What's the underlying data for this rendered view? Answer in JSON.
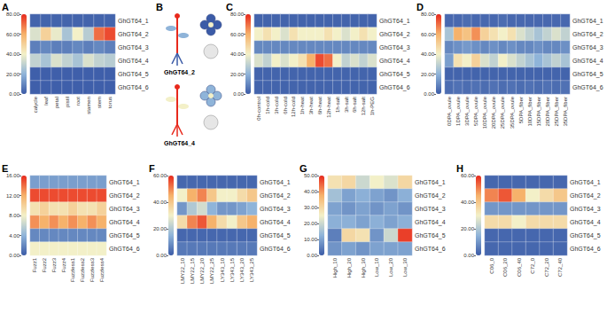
{
  "chart_data": [
    {
      "type": "heatmap",
      "title": "A",
      "x": [
        "calycle",
        "leaf",
        "petal",
        "pistil",
        "root",
        "stamen",
        "stem",
        "torus"
      ],
      "y": [
        "GhGT64_1",
        "GhGT64_2",
        "GhGT64_3",
        "GhGT64_4",
        "GhGT64_5",
        "GhGT64_6"
      ],
      "values": [
        [
          2,
          2,
          2,
          2,
          2,
          2,
          2,
          2
        ],
        [
          35,
          50,
          38,
          25,
          40,
          28,
          70,
          75
        ],
        [
          8,
          10,
          8,
          8,
          10,
          8,
          10,
          8
        ],
        [
          30,
          25,
          35,
          30,
          25,
          35,
          30,
          28
        ],
        [
          1,
          1,
          1,
          1,
          1,
          1,
          1,
          1
        ],
        [
          1,
          1,
          1,
          1,
          1,
          1,
          1,
          1
        ]
      ],
      "colorbar": {
        "range": [
          0,
          80
        ],
        "ticks": [
          {
            "value": 0,
            "label": "0.00"
          },
          {
            "value": 20,
            "label": "20.00"
          },
          {
            "value": 40,
            "label": "40.00"
          },
          {
            "value": 60,
            "label": "60.00"
          },
          {
            "value": 80,
            "label": "80.00"
          }
        ]
      }
    },
    {
      "type": "heatmap",
      "title": "C",
      "x": [
        "0h-control",
        "1h-cold",
        "3h-cold",
        "6h-cold",
        "12h-cold",
        "1h-heat",
        "3h-heat",
        "6h-heat",
        "12h-heat",
        "1h-salt",
        "3h-salt",
        "6h-salt",
        "12h-salt",
        "1h-PEG"
      ],
      "y": [
        "GhGT64_1",
        "GhGT64_2",
        "GhGT64_3",
        "GhGT64_4",
        "GhGT64_5",
        "GhGT64_6"
      ],
      "values": [
        [
          2,
          2,
          2,
          2,
          2,
          2,
          2,
          2,
          2,
          2,
          2,
          2,
          2,
          2
        ],
        [
          40,
          45,
          40,
          35,
          45,
          40,
          40,
          40,
          45,
          40,
          35,
          40,
          45,
          40
        ],
        [
          10,
          10,
          10,
          10,
          10,
          10,
          10,
          10,
          10,
          10,
          10,
          10,
          10,
          10
        ],
        [
          35,
          30,
          40,
          35,
          40,
          45,
          60,
          75,
          70,
          40,
          30,
          35,
          30,
          35
        ],
        [
          2,
          2,
          2,
          2,
          2,
          2,
          2,
          2,
          2,
          2,
          2,
          2,
          2,
          2
        ],
        [
          2,
          2,
          2,
          2,
          2,
          2,
          2,
          2,
          2,
          2,
          2,
          2,
          2,
          2
        ]
      ],
      "colorbar": {
        "range": [
          0,
          80
        ],
        "ticks": [
          {
            "value": 0,
            "label": "0.00"
          },
          {
            "value": 20,
            "label": "20.00"
          },
          {
            "value": 40,
            "label": "40.00"
          },
          {
            "value": 60,
            "label": "60.00"
          },
          {
            "value": 80,
            "label": "80.00"
          }
        ]
      }
    },
    {
      "type": "heatmap",
      "title": "D",
      "x": [
        "0DPA_ovule",
        "1DPA_ovule",
        "3DPA_ovule",
        "5DPA_ovule",
        "10DPA_ovule",
        "20DPA_ovule",
        "25DPA_ovule",
        "35DPA_ovule",
        "5DPA_fiber",
        "10DPA_fiber",
        "15DPA_fiber",
        "20DPA_fiber",
        "25DPA_fiber",
        "35DPA_fiber"
      ],
      "y": [
        "GhGT64_1",
        "GhGT64_2",
        "GhGT64_3",
        "GhGT64_4",
        "GhGT64_5",
        "GhGT64_6"
      ],
      "values": [
        [
          3,
          3,
          4,
          3,
          3,
          3,
          4,
          3,
          3,
          3,
          3,
          3,
          3,
          3
        ],
        [
          25,
          60,
          55,
          65,
          50,
          45,
          40,
          45,
          35,
          30,
          25,
          30,
          35,
          30
        ],
        [
          10,
          12,
          14,
          12,
          10,
          12,
          10,
          12,
          10,
          10,
          12,
          10,
          10,
          12
        ],
        [
          15,
          45,
          40,
          50,
          35,
          30,
          40,
          35,
          30,
          25,
          20,
          25,
          30,
          25
        ],
        [
          2,
          2,
          2,
          2,
          2,
          2,
          2,
          2,
          2,
          2,
          2,
          2,
          2,
          2
        ],
        [
          4,
          5,
          4,
          5,
          4,
          5,
          4,
          5,
          4,
          5,
          4,
          5,
          4,
          5
        ]
      ],
      "colorbar": {
        "range": [
          0,
          80
        ],
        "ticks": [
          {
            "value": 0,
            "label": "0.00"
          },
          {
            "value": 20,
            "label": "20.00"
          },
          {
            "value": 40,
            "label": "40.00"
          },
          {
            "value": 60,
            "label": "60.00"
          },
          {
            "value": 80,
            "label": "80.00"
          }
        ]
      }
    },
    {
      "type": "heatmap",
      "title": "E",
      "x": [
        "Fuzz1",
        "Fuzz2",
        "Fuzz3",
        "Fuzz4",
        "Fuzzless1",
        "Fuzzless2",
        "Fuzzless3",
        "Fuzzless4"
      ],
      "y": [
        "GhGT64_1",
        "GhGT64_2",
        "GhGT64_3",
        "GhGT64_4",
        "GhGT64_5",
        "GhGT64_6"
      ],
      "values": [
        [
          3,
          3,
          3,
          3,
          3,
          3,
          3,
          3
        ],
        [
          15,
          15,
          15,
          15,
          15,
          15,
          15,
          15
        ],
        [
          9,
          10,
          9,
          9,
          10,
          9,
          9,
          10
        ],
        [
          13,
          12,
          13,
          12,
          13,
          12,
          13,
          12
        ],
        [
          2,
          2,
          2,
          2,
          2,
          2,
          2,
          2
        ],
        [
          8,
          8,
          8,
          8,
          8,
          8,
          8,
          8
        ]
      ],
      "colorbar": {
        "range": [
          0,
          16
        ],
        "ticks": [
          {
            "value": 0,
            "label": "0.00"
          },
          {
            "value": 4,
            "label": "4.00"
          },
          {
            "value": 8,
            "label": "8.00"
          },
          {
            "value": 12,
            "label": "12.00"
          },
          {
            "value": 16,
            "label": "16.00"
          }
        ]
      }
    },
    {
      "type": "heatmap",
      "title": "F",
      "x": [
        "LMY22_10",
        "LMY22_15",
        "LMY22_20",
        "LMY22_25",
        "LY343_10",
        "LY343_15",
        "LY343_20",
        "LY343_25"
      ],
      "y": [
        "GhGT64_1",
        "GhGT64_2",
        "GhGT64_3",
        "GhGT64_4",
        "GhGT64_5",
        "GhGT64_6"
      ],
      "values": [
        [
          2,
          2,
          2,
          2,
          2,
          2,
          2,
          2
        ],
        [
          30,
          45,
          50,
          40,
          30,
          30,
          35,
          40
        ],
        [
          10,
          20,
          25,
          15,
          10,
          10,
          12,
          15
        ],
        [
          35,
          50,
          55,
          45,
          35,
          30,
          40,
          45
        ],
        [
          2,
          2,
          2,
          2,
          2,
          2,
          2,
          2
        ],
        [
          5,
          5,
          5,
          5,
          5,
          5,
          5,
          5
        ]
      ],
      "colorbar": {
        "range": [
          0,
          60
        ],
        "ticks": [
          {
            "value": 0,
            "label": "0.00"
          },
          {
            "value": 20,
            "label": "20.00"
          },
          {
            "value": 40,
            "label": "40.00"
          },
          {
            "value": 60,
            "label": "60.00"
          }
        ]
      }
    },
    {
      "type": "heatmap",
      "title": "G",
      "x": [
        "High_10",
        "High_20",
        "High_30",
        "Low_10",
        "Low_20",
        "Low_30"
      ],
      "y": [
        "GhGT64_1",
        "GhGT64_2",
        "GhGT64_3",
        "GhGT64_4",
        "GhGT64_5",
        "GhGT64_6"
      ],
      "values": [
        [
          28,
          30,
          20,
          25,
          22,
          30
        ],
        [
          15,
          10,
          12,
          10,
          8,
          12
        ],
        [
          10,
          8,
          10,
          8,
          10,
          8
        ],
        [
          12,
          12,
          10,
          12,
          10,
          12
        ],
        [
          5,
          30,
          28,
          8,
          20,
          48
        ],
        [
          8,
          10,
          8,
          10,
          10,
          10
        ]
      ],
      "colorbar": {
        "range": [
          0,
          50
        ],
        "ticks": [
          {
            "value": 0,
            "label": "0.00"
          },
          {
            "value": 10,
            "label": "10.00"
          },
          {
            "value": 20,
            "label": "20.00"
          },
          {
            "value": 30,
            "label": "30.00"
          },
          {
            "value": 40,
            "label": "40.00"
          },
          {
            "value": 50,
            "label": "50.00"
          }
        ]
      }
    },
    {
      "type": "heatmap",
      "title": "H",
      "x": [
        "C06_0",
        "C06_20",
        "C06_40",
        "C72_0",
        "C72_20",
        "C72_40"
      ],
      "y": [
        "GhGT64_1",
        "GhGT64_2",
        "GhGT64_3",
        "GhGT64_4",
        "GhGT64_5",
        "GhGT64_6"
      ],
      "values": [
        [
          2,
          2,
          2,
          2,
          2,
          2
        ],
        [
          50,
          55,
          45,
          30,
          35,
          40
        ],
        [
          10,
          10,
          10,
          10,
          10,
          10
        ],
        [
          35,
          35,
          30,
          35,
          35,
          35
        ],
        [
          2,
          2,
          2,
          2,
          2,
          2
        ],
        [
          2,
          2,
          2,
          2,
          2,
          2
        ]
      ],
      "colorbar": {
        "range": [
          0,
          60
        ],
        "ticks": [
          {
            "value": 0,
            "label": "0.00"
          },
          {
            "value": 20,
            "label": "20.00"
          },
          {
            "value": 40,
            "label": "40.00"
          },
          {
            "value": 60,
            "label": "60.00"
          }
        ]
      }
    }
  ],
  "diagram": {
    "title": "B",
    "labels": [
      "GhGT64_2",
      "GhGT64_4"
    ]
  }
}
